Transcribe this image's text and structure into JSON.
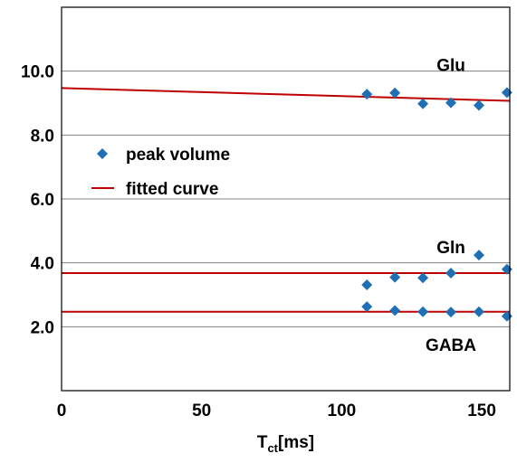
{
  "chart_data": {
    "type": "scatter",
    "xlabel": "T",
    "xlabel_sub": "ct",
    "xlabel_unit": "[ms]",
    "ylabel": "",
    "xlim": [
      0,
      160
    ],
    "ylim": [
      0,
      12
    ],
    "xticks": [
      {
        "value": 0,
        "label": "0"
      },
      {
        "value": 50,
        "label": "50"
      },
      {
        "value": 100,
        "label": "100"
      },
      {
        "value": 150,
        "label": "150"
      }
    ],
    "yticks": [
      {
        "value": 2,
        "label": "2.0"
      },
      {
        "value": 4,
        "label": "4.0"
      },
      {
        "value": 6,
        "label": "6.0"
      },
      {
        "value": 8,
        "label": "8.0"
      },
      {
        "value": 10,
        "label": "10.0"
      }
    ],
    "grid": "horizontal",
    "legend_position": "upper-left",
    "legend": [
      {
        "label": "peak volume",
        "marker": "diamond",
        "color": "#1f6fb5"
      },
      {
        "label": "fitted curve",
        "marker": "line",
        "color": "#c00000"
      }
    ],
    "x": [
      109,
      119,
      129,
      139,
      149,
      159
    ],
    "series": [
      {
        "name": "Glu",
        "values": [
          9.28,
          9.32,
          8.98,
          9.01,
          8.93,
          9.33
        ],
        "fit": {
          "x": [
            0,
            160
          ],
          "y": [
            9.47,
            9.07
          ]
        }
      },
      {
        "name": "Gln",
        "values": [
          3.31,
          3.55,
          3.53,
          3.68,
          4.24,
          3.8
        ],
        "fit": {
          "x": [
            0,
            160
          ],
          "y": [
            3.68,
            3.68
          ]
        }
      },
      {
        "name": "GABA",
        "values": [
          2.63,
          2.51,
          2.47,
          2.46,
          2.47,
          2.33
        ],
        "fit": {
          "x": [
            0,
            160
          ],
          "y": [
            2.47,
            2.47
          ]
        }
      }
    ],
    "annotations": [
      {
        "text": "Glu",
        "x": 139,
        "y": 10.0
      },
      {
        "text": "Gln",
        "x": 139,
        "y": 4.3
      },
      {
        "text": "GABA",
        "x": 139,
        "y": 1.25
      }
    ],
    "colors": {
      "marker": "#1f6fb5",
      "fit": "#c00000",
      "grid": "#808080",
      "axis": "#000000"
    }
  }
}
